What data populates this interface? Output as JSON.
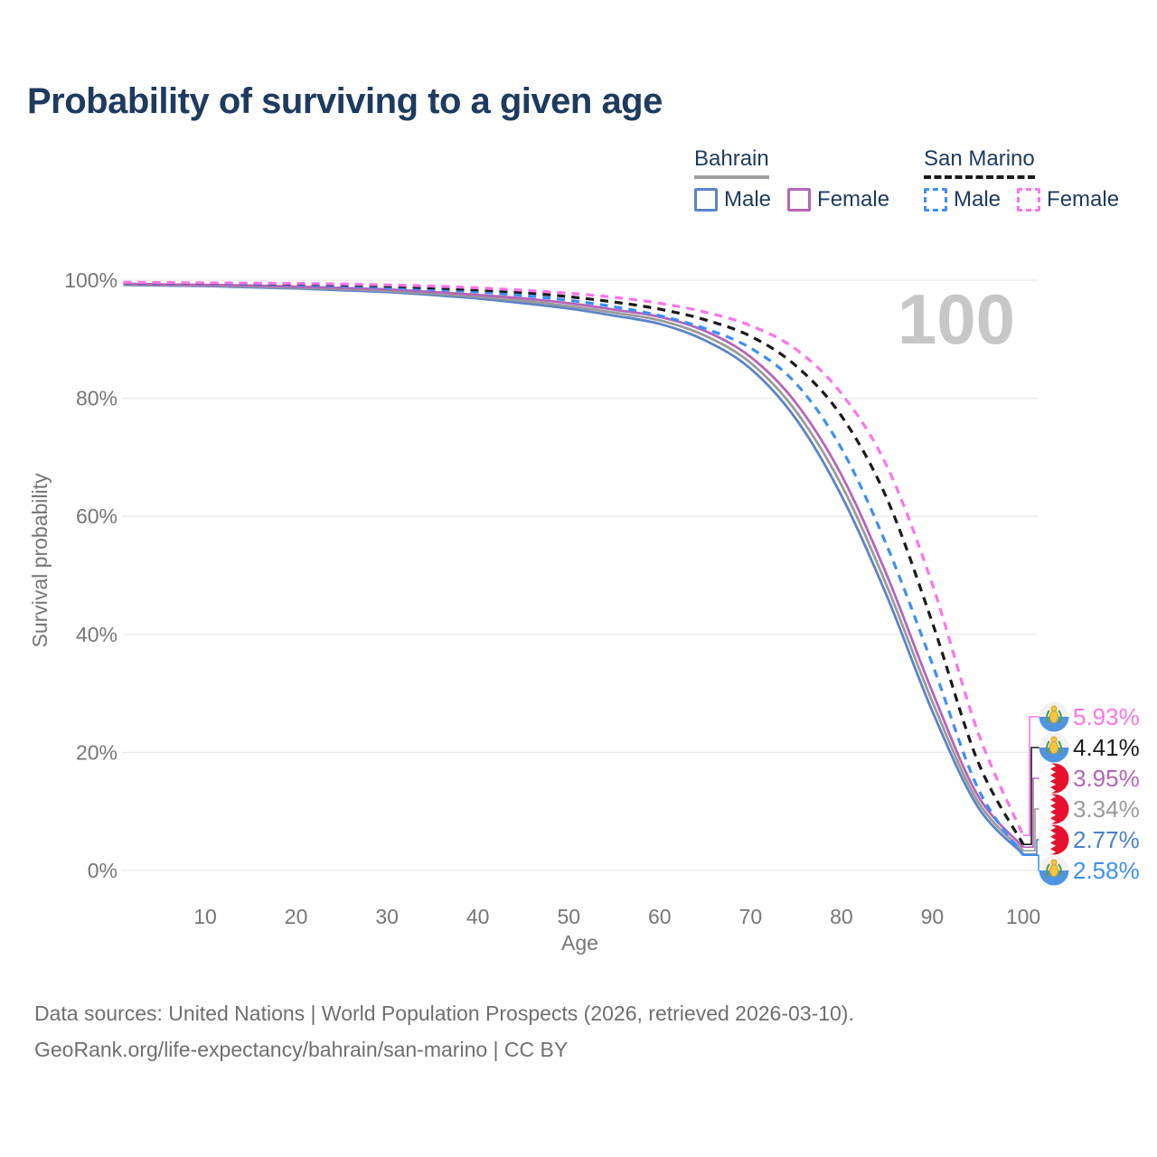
{
  "title": "Probability of surviving to a given age",
  "legend": {
    "groups": [
      {
        "country": "Bahrain",
        "line_style": "solid",
        "underline_color": "#9e9e9e",
        "items": [
          {
            "label": "Male",
            "color": "#5b84c8"
          },
          {
            "label": "Female",
            "color": "#b565b8"
          }
        ]
      },
      {
        "country": "San Marino",
        "line_style": "dashed",
        "underline_color": "#1a1a1a",
        "items": [
          {
            "label": "Male",
            "color": "#3f8ef5"
          },
          {
            "label": "Female",
            "color": "#fb74e9"
          }
        ]
      }
    ]
  },
  "chart_data": {
    "type": "line",
    "title": "Probability of surviving to a given age",
    "xlabel": "Age",
    "ylabel": "Survival probability",
    "xlim": [
      0,
      100
    ],
    "ylim": [
      0,
      100
    ],
    "grid": "horizontal-only",
    "watermark": "100",
    "xticks": [
      10,
      20,
      30,
      40,
      50,
      60,
      70,
      80,
      90,
      100
    ],
    "yticks_percent": [
      0,
      20,
      40,
      60,
      80,
      100
    ],
    "x": [
      1,
      5,
      10,
      15,
      20,
      25,
      30,
      35,
      40,
      45,
      50,
      55,
      60,
      65,
      70,
      75,
      80,
      85,
      90,
      95,
      100
    ],
    "series": [
      {
        "name": "Bahrain Male",
        "country": "bahrain",
        "sex": "male",
        "style": "solid",
        "color": "#5b84c8",
        "label_color": "#4d7fc9",
        "end_label": "2.77%",
        "values": [
          99.2,
          99.1,
          99.0,
          98.8,
          98.6,
          98.3,
          98.0,
          97.5,
          96.9,
          96.1,
          95.2,
          94.0,
          92.6,
          89.8,
          85.0,
          76.5,
          63.5,
          46.5,
          27.0,
          10.8,
          2.77
        ]
      },
      {
        "name": "Bahrain (both sexes)",
        "country": "bahrain",
        "sex": "both",
        "style": "solid",
        "color": "#9b9b9b",
        "label_color": "#9b9b9b",
        "end_label": "3.34%",
        "values": [
          99.3,
          99.2,
          99.1,
          98.95,
          98.75,
          98.5,
          98.2,
          97.75,
          97.2,
          96.5,
          95.6,
          94.5,
          93.2,
          90.6,
          86.0,
          77.8,
          65.3,
          48.2,
          28.6,
          11.7,
          3.34
        ]
      },
      {
        "name": "Bahrain Female",
        "country": "bahrain",
        "sex": "female",
        "style": "solid",
        "color": "#b565b8",
        "label_color": "#b565b8",
        "end_label": "3.95%",
        "values": [
          99.4,
          99.3,
          99.2,
          99.1,
          98.9,
          98.7,
          98.45,
          98.0,
          97.5,
          96.9,
          96.1,
          95.0,
          93.8,
          91.4,
          87.0,
          79.2,
          67.0,
          50.0,
          30.3,
          12.7,
          3.95
        ]
      },
      {
        "name": "San Marino Male",
        "country": "sanmarino",
        "sex": "male",
        "style": "dashed",
        "color": "#3f8ef5",
        "label_color": "#3f8ef5",
        "end_label": "2.58%",
        "values": [
          99.55,
          99.5,
          99.45,
          99.35,
          99.2,
          99.0,
          98.75,
          98.4,
          98.0,
          97.4,
          96.6,
          95.5,
          94.0,
          91.8,
          88.5,
          82.5,
          71.5,
          55.0,
          35.0,
          14.0,
          2.58
        ]
      },
      {
        "name": "San Marino (both sexes)",
        "country": "sanmarino",
        "sex": "both",
        "style": "dashed",
        "color": "#1a1a1a",
        "label_color": "#1c1c1c",
        "end_label": "4.41%",
        "values": [
          99.6,
          99.55,
          99.5,
          99.45,
          99.35,
          99.2,
          99.0,
          98.7,
          98.35,
          97.9,
          97.2,
          96.3,
          95.1,
          93.3,
          90.5,
          85.5,
          77.0,
          63.0,
          42.0,
          18.5,
          4.41
        ]
      },
      {
        "name": "San Marino Female",
        "country": "sanmarino",
        "sex": "female",
        "style": "dashed",
        "color": "#fb74e9",
        "label_color": "#fb74e9",
        "end_label": "5.93%",
        "values": [
          99.65,
          99.6,
          99.55,
          99.5,
          99.45,
          99.35,
          99.2,
          99.0,
          98.7,
          98.3,
          97.8,
          97.1,
          96.1,
          94.6,
          92.3,
          88.3,
          80.8,
          68.5,
          48.5,
          23.5,
          5.93
        ]
      }
    ],
    "colors": {
      "grid": "#e9e9e9",
      "axis_text": "#767676",
      "watermark": "#c7c7c7",
      "bahrain_flag_red": "#e8112d",
      "sanmarino_flag_blue": "#4f94e3",
      "sanmarino_crest_gold": "#f3c63e",
      "sanmarino_crest_green": "#5aa04f"
    }
  },
  "footer": {
    "line1": "Data sources: United Nations | World Population Prospects (2026, retrieved 2026-03-10).",
    "line2": "GeoRank.org/life-expectancy/bahrain/san-marino | CC BY"
  }
}
